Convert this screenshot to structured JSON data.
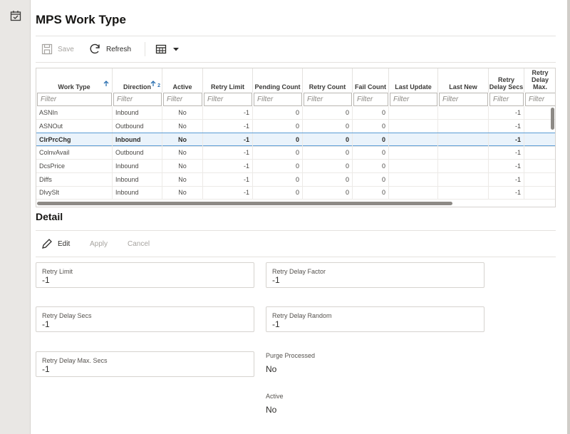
{
  "header": {
    "title": "MPS Work Type"
  },
  "toolbar": {
    "save": "Save",
    "refresh": "Refresh"
  },
  "table": {
    "columns": [
      "Work Type",
      "Direction",
      "Active",
      "Retry Limit",
      "Pending Count",
      "Retry Count",
      "Fail Count",
      "Last Update",
      "Last New",
      "Retry Delay Secs",
      "Retry Delay Max."
    ],
    "sort_rank": "2",
    "filter_placeholder": "Filter",
    "rows": [
      {
        "work_type": "ASNIn",
        "direction": "Inbound",
        "active": "No",
        "retry_limit": -1,
        "pending_count": 0,
        "retry_count": 0,
        "fail_count": 0,
        "retry_delay_secs": -1
      },
      {
        "work_type": "ASNOut",
        "direction": "Outbound",
        "active": "No",
        "retry_limit": -1,
        "pending_count": 0,
        "retry_count": 0,
        "fail_count": 0,
        "retry_delay_secs": -1
      },
      {
        "work_type": "ClrPrcChg",
        "direction": "Inbound",
        "active": "No",
        "retry_limit": -1,
        "pending_count": 0,
        "retry_count": 0,
        "fail_count": 0,
        "retry_delay_secs": -1
      },
      {
        "work_type": "ColnvAvail",
        "direction": "Outbound",
        "active": "No",
        "retry_limit": -1,
        "pending_count": 0,
        "retry_count": 0,
        "fail_count": 0,
        "retry_delay_secs": -1
      },
      {
        "work_type": "DcsPrice",
        "direction": "Inbound",
        "active": "No",
        "retry_limit": -1,
        "pending_count": 0,
        "retry_count": 0,
        "fail_count": 0,
        "retry_delay_secs": -1
      },
      {
        "work_type": "Diffs",
        "direction": "Inbound",
        "active": "No",
        "retry_limit": -1,
        "pending_count": 0,
        "retry_count": 0,
        "fail_count": 0,
        "retry_delay_secs": -1
      },
      {
        "work_type": "DlvySlt",
        "direction": "Inbound",
        "active": "No",
        "retry_limit": -1,
        "pending_count": 0,
        "retry_count": 0,
        "fail_count": 0,
        "retry_delay_secs": -1
      }
    ]
  },
  "detail": {
    "title": "Detail",
    "actions": [
      "Edit",
      "Apply",
      "Cancel"
    ],
    "fields": [
      {
        "label": "Retry Limit",
        "value": "-1"
      },
      {
        "label": "Retry Delay Factor",
        "value": "-1"
      },
      {
        "label": "Retry Delay Secs",
        "value": "-1"
      },
      {
        "label": "Retry Delay Random",
        "value": "-1"
      },
      {
        "label": "Retry Delay Max. Secs",
        "value": "-1"
      }
    ],
    "readonly_fields": [
      {
        "label": "Purge Processed",
        "value": "No"
      },
      {
        "label": "Active",
        "value": "No"
      }
    ]
  }
}
